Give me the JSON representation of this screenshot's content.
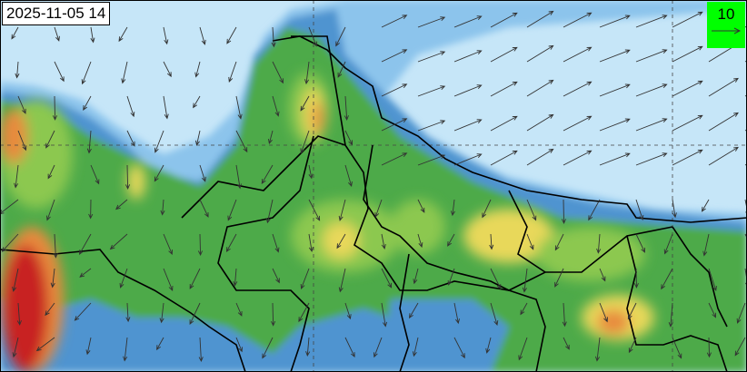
{
  "map": {
    "timestamp": "2025-11-05 14",
    "legend": {
      "reference_value": "10",
      "background_color": "#00ff00",
      "arrow_icon": "wind-reference-arrow"
    },
    "palette": {
      "light_blue": "#c6e6f8",
      "mid_blue": "#8cc4ec",
      "blue": "#4f94d0",
      "green": "#4daa48",
      "light_green": "#8cc850",
      "yellow": "#e8d85a",
      "orange": "#e88a3c",
      "red": "#c82020"
    }
  }
}
